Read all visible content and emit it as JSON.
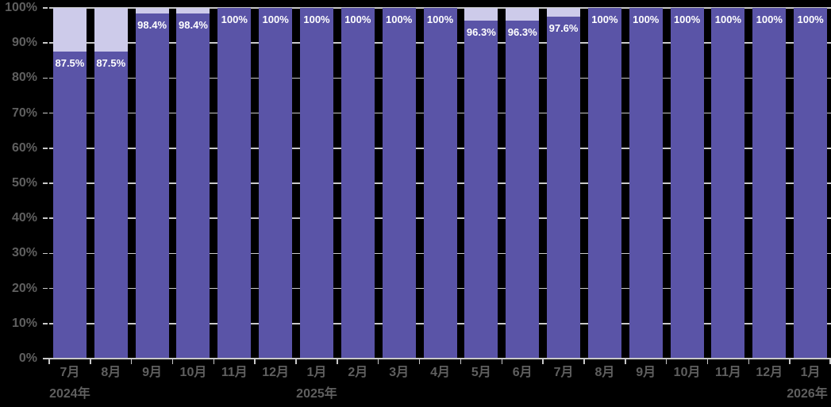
{
  "chart_data": {
    "type": "bar",
    "subtype": "stacked-percentage-column",
    "title": "",
    "xlabel": "",
    "ylabel": "",
    "grid": true,
    "legend_position": "none",
    "categories": [
      "7月",
      "8月",
      "9月",
      "10月",
      "11月",
      "12月",
      "1月",
      "2月",
      "3月",
      "4月",
      "5月",
      "6月",
      "7月",
      "8月",
      "9月",
      "10月",
      "11月",
      "12月",
      "1月"
    ],
    "year_labels": [
      {
        "label": "2024年",
        "slot": 0
      },
      {
        "label": "2025年",
        "slot": 6
      },
      {
        "label": "2026年",
        "slot": 18
      }
    ],
    "series": [
      {
        "name": "primary",
        "values": [
          87.5,
          87.5,
          98.4,
          98.4,
          100,
          100,
          100,
          100,
          100,
          100,
          96.3,
          96.3,
          97.6,
          100,
          100,
          100,
          100,
          100,
          100
        ]
      },
      {
        "name": "remainder-to-100",
        "values": [
          12.5,
          12.5,
          1.6,
          1.6,
          0,
          0,
          0,
          0,
          0,
          0,
          3.7,
          3.7,
          2.4,
          0,
          0,
          0,
          0,
          0,
          0
        ]
      }
    ],
    "value_labels": [
      "87.5%",
      "87.5%",
      "98.4%",
      "98.4%",
      "100%",
      "100%",
      "100%",
      "100%",
      "100%",
      "100%",
      "96.3%",
      "96.3%",
      "97.6%",
      "100%",
      "100%",
      "100%",
      "100%",
      "100%",
      "100%"
    ],
    "y_axis": {
      "min": 0,
      "max": 100,
      "tick_step": 10,
      "tick_labels": [
        "0%",
        "10%",
        "20%",
        "30%",
        "40%",
        "50%",
        "60%",
        "70%",
        "80%",
        "90%",
        "100%"
      ]
    },
    "colors": {
      "bar_primary": "#5A54A7",
      "bar_remainder": "#CDCBEA",
      "gridline": "#C8C8C8",
      "axis": "#C8C8C8",
      "axis_text": "#5F5F5F",
      "value_text": "#FFFFFF",
      "background": "#000000"
    }
  }
}
